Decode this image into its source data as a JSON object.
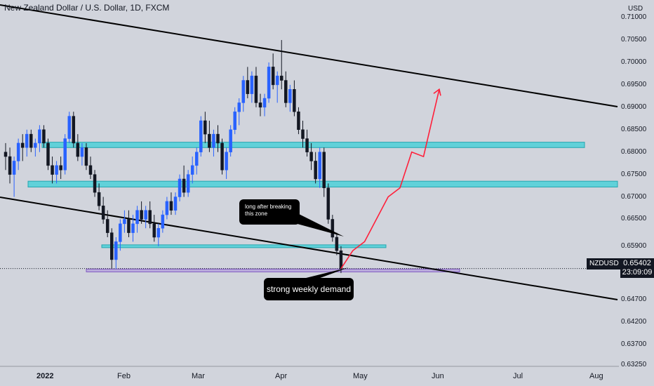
{
  "title": "New Zealand Dollar / U.S. Dollar, 1D, FXCM",
  "currency": "USD",
  "symbol": "NZDUSD",
  "last_price": "0.65402",
  "countdown": "23:09:09",
  "price_axis": [
    "0.71000",
    "0.70500",
    "0.70000",
    "0.69500",
    "0.69000",
    "0.68500",
    "0.68000",
    "0.67500",
    "0.67000",
    "0.66500",
    "0.65900",
    "0.64700",
    "0.64200",
    "0.63700",
    "0.63250"
  ],
  "date_axis": [
    {
      "label": "2022",
      "bold": true
    },
    {
      "label": "Feb",
      "bold": false
    },
    {
      "label": "Mar",
      "bold": false
    },
    {
      "label": "Apr",
      "bold": false
    },
    {
      "label": "May",
      "bold": false
    },
    {
      "label": "Jun",
      "bold": false
    },
    {
      "label": "Jul",
      "bold": false
    },
    {
      "label": "Aug",
      "bold": false
    }
  ],
  "annotations": {
    "note_small": "long after breaking this zone",
    "note_big": "strong weekly demand"
  },
  "colors": {
    "up": "#2962ff",
    "down": "#131722",
    "zone": "#4dd0d8",
    "demand_zone": "#b39ddb",
    "projection": "#ff1f3a"
  },
  "chart_data": {
    "type": "candlestick",
    "title": "New Zealand Dollar / U.S. Dollar, 1D, FXCM",
    "ylim": [
      0.6325,
      0.7108
    ],
    "zones": [
      {
        "kind": "resistance",
        "low": 0.681,
        "high": 0.6822
      },
      {
        "kind": "support",
        "low": 0.6722,
        "high": 0.6735
      },
      {
        "kind": "support",
        "low": 0.6587,
        "high": 0.6593
      },
      {
        "kind": "demand",
        "low": 0.6533,
        "high": 0.6539
      }
    ],
    "last_price": 0.65402,
    "candles": [
      [
        0.68,
        0.682,
        0.676,
        0.679
      ],
      [
        0.679,
        0.681,
        0.673,
        0.675
      ],
      [
        0.675,
        0.679,
        0.67,
        0.678
      ],
      [
        0.678,
        0.683,
        0.676,
        0.682
      ],
      [
        0.682,
        0.684,
        0.678,
        0.681
      ],
      [
        0.681,
        0.685,
        0.679,
        0.684
      ],
      [
        0.684,
        0.685,
        0.68,
        0.681
      ],
      [
        0.681,
        0.683,
        0.679,
        0.682
      ],
      [
        0.682,
        0.686,
        0.68,
        0.685
      ],
      [
        0.685,
        0.686,
        0.681,
        0.682
      ],
      [
        0.682,
        0.683,
        0.676,
        0.677
      ],
      [
        0.677,
        0.679,
        0.673,
        0.675
      ],
      [
        0.675,
        0.678,
        0.673,
        0.677
      ],
      [
        0.677,
        0.679,
        0.674,
        0.676
      ],
      [
        0.676,
        0.684,
        0.675,
        0.683
      ],
      [
        0.683,
        0.689,
        0.682,
        0.688
      ],
      [
        0.688,
        0.689,
        0.681,
        0.682
      ],
      [
        0.682,
        0.684,
        0.678,
        0.679
      ],
      [
        0.679,
        0.682,
        0.677,
        0.681
      ],
      [
        0.681,
        0.682,
        0.676,
        0.677
      ],
      [
        0.677,
        0.679,
        0.674,
        0.675
      ],
      [
        0.675,
        0.676,
        0.67,
        0.671
      ],
      [
        0.671,
        0.673,
        0.667,
        0.668
      ],
      [
        0.668,
        0.67,
        0.664,
        0.665
      ],
      [
        0.665,
        0.667,
        0.661,
        0.662
      ],
      [
        0.662,
        0.663,
        0.654,
        0.656
      ],
      [
        0.656,
        0.661,
        0.654,
        0.66
      ],
      [
        0.66,
        0.665,
        0.658,
        0.664
      ],
      [
        0.664,
        0.667,
        0.662,
        0.665
      ],
      [
        0.665,
        0.667,
        0.661,
        0.662
      ],
      [
        0.662,
        0.666,
        0.66,
        0.664
      ],
      [
        0.664,
        0.668,
        0.662,
        0.667
      ],
      [
        0.667,
        0.669,
        0.664,
        0.665
      ],
      [
        0.665,
        0.668,
        0.663,
        0.667
      ],
      [
        0.667,
        0.669,
        0.663,
        0.664
      ],
      [
        0.664,
        0.666,
        0.66,
        0.661
      ],
      [
        0.661,
        0.664,
        0.659,
        0.663
      ],
      [
        0.663,
        0.667,
        0.662,
        0.666
      ],
      [
        0.666,
        0.67,
        0.665,
        0.669
      ],
      [
        0.669,
        0.671,
        0.666,
        0.667
      ],
      [
        0.667,
        0.671,
        0.666,
        0.67
      ],
      [
        0.67,
        0.675,
        0.669,
        0.674
      ],
      [
        0.674,
        0.677,
        0.67,
        0.671
      ],
      [
        0.671,
        0.676,
        0.67,
        0.675
      ],
      [
        0.675,
        0.679,
        0.673,
        0.677
      ],
      [
        0.677,
        0.681,
        0.675,
        0.68
      ],
      [
        0.68,
        0.688,
        0.679,
        0.687
      ],
      [
        0.687,
        0.689,
        0.682,
        0.684
      ],
      [
        0.684,
        0.687,
        0.68,
        0.681
      ],
      [
        0.681,
        0.685,
        0.679,
        0.684
      ],
      [
        0.684,
        0.686,
        0.68,
        0.682
      ],
      [
        0.682,
        0.683,
        0.675,
        0.676
      ],
      [
        0.676,
        0.681,
        0.674,
        0.68
      ],
      [
        0.68,
        0.686,
        0.679,
        0.685
      ],
      [
        0.685,
        0.69,
        0.684,
        0.689
      ],
      [
        0.689,
        0.692,
        0.686,
        0.691
      ],
      [
        0.691,
        0.697,
        0.689,
        0.696
      ],
      [
        0.696,
        0.699,
        0.692,
        0.693
      ],
      [
        0.693,
        0.698,
        0.691,
        0.697
      ],
      [
        0.697,
        0.699,
        0.69,
        0.691
      ],
      [
        0.691,
        0.693,
        0.688,
        0.69
      ],
      [
        0.69,
        0.693,
        0.688,
        0.692
      ],
      [
        0.692,
        0.7,
        0.691,
        0.699
      ],
      [
        0.699,
        0.702,
        0.694,
        0.695
      ],
      [
        0.695,
        0.698,
        0.691,
        0.697
      ],
      [
        0.697,
        0.705,
        0.694,
        0.696
      ],
      [
        0.696,
        0.698,
        0.69,
        0.691
      ],
      [
        0.691,
        0.695,
        0.689,
        0.694
      ],
      [
        0.694,
        0.696,
        0.688,
        0.689
      ],
      [
        0.689,
        0.69,
        0.684,
        0.685
      ],
      [
        0.685,
        0.687,
        0.681,
        0.683
      ],
      [
        0.683,
        0.685,
        0.679,
        0.68
      ],
      [
        0.68,
        0.682,
        0.676,
        0.678
      ],
      [
        0.678,
        0.68,
        0.673,
        0.674
      ],
      [
        0.674,
        0.681,
        0.672,
        0.68
      ],
      [
        0.68,
        0.681,
        0.67,
        0.672
      ],
      [
        0.672,
        0.673,
        0.664,
        0.665
      ],
      [
        0.665,
        0.666,
        0.66,
        0.661
      ],
      [
        0.661,
        0.662,
        0.657,
        0.658
      ],
      [
        0.658,
        0.659,
        0.653,
        0.654
      ]
    ],
    "projection_path": [
      [
        0,
        0.654
      ],
      [
        3,
        0.658
      ],
      [
        6,
        0.66
      ],
      [
        12,
        0.67
      ],
      [
        15,
        0.672
      ],
      [
        18,
        0.68
      ],
      [
        21,
        0.679
      ],
      [
        25,
        0.694
      ]
    ]
  }
}
